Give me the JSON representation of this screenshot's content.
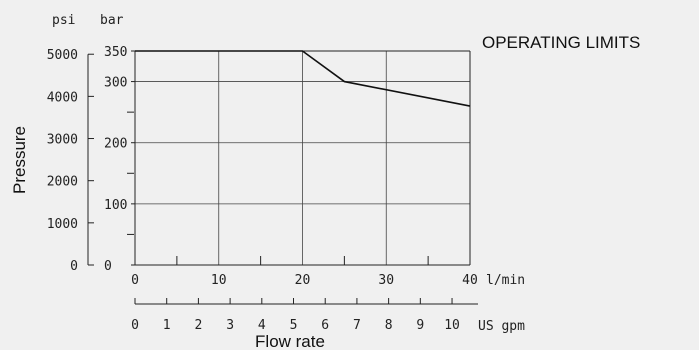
{
  "chart_data": {
    "type": "line",
    "title": "OPERATING LIMITS",
    "ylabel": "Pressure",
    "xlabel": "Flow rate",
    "x_unit_primary": "l/min",
    "x_unit_secondary": "US gpm",
    "y_unit_psi": "psi",
    "y_unit_bar": "bar",
    "xlim": [
      0,
      40
    ],
    "ylim_bar": [
      0,
      350
    ],
    "x_ticks": [
      "0",
      "10",
      "20",
      "30",
      "40"
    ],
    "gpm_ticks": [
      "0",
      "1",
      "2",
      "3",
      "4",
      "5",
      "6",
      "7",
      "8",
      "9",
      "10"
    ],
    "bar_ticks": [
      "0",
      "100",
      "200",
      "300",
      "350"
    ],
    "psi_ticks": [
      "0",
      "1000",
      "2000",
      "3000",
      "4000",
      "5000"
    ],
    "grid": true,
    "series": [
      {
        "x": [
          0,
          20,
          25,
          40
        ],
        "y": [
          350,
          350,
          300,
          260
        ]
      }
    ]
  }
}
